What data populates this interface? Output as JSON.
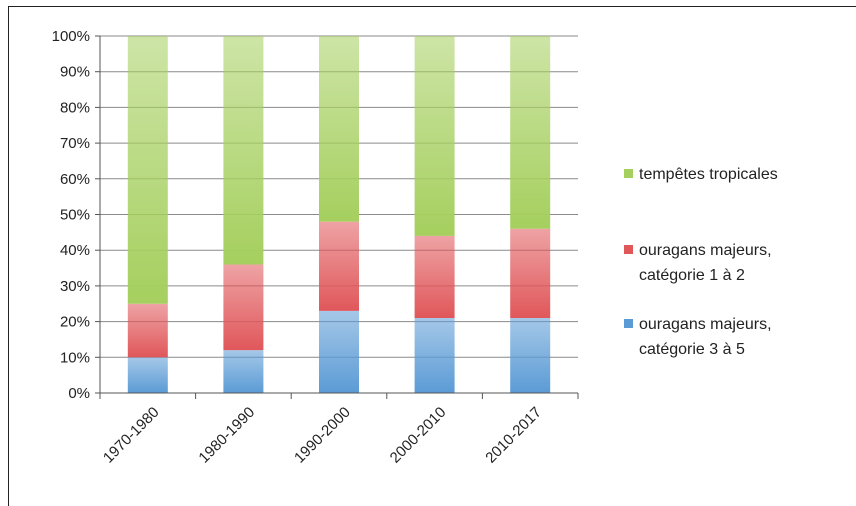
{
  "chart_data": {
    "type": "bar",
    "stacked": true,
    "percent": true,
    "categories": [
      "1970-1980",
      "1980-1990",
      "1990-2000",
      "2000-2010",
      "2010-2017"
    ],
    "series": [
      {
        "name": "ouragans majeurs, catégorie 3 à 5",
        "legend_lines": [
          "ouragans majeurs,",
          "catégorie 3 à 5"
        ],
        "color": "#5b9bd5",
        "values": [
          10,
          12,
          23,
          21,
          21
        ]
      },
      {
        "name": "ouragans majeurs, catégorie 1 à 2",
        "legend_lines": [
          "ouragans majeurs,",
          "catégorie 1 à 2"
        ],
        "color": "#e0575a",
        "values": [
          15,
          24,
          25,
          23,
          25
        ]
      },
      {
        "name": "tempêtes tropicales",
        "legend_lines": [
          "tempêtes tropicales"
        ],
        "color": "#a5cf5e",
        "values": [
          75,
          64,
          52,
          56,
          54
        ]
      }
    ],
    "ylim": [
      0,
      100
    ],
    "yticks": [
      "0%",
      "10%",
      "20%",
      "30%",
      "40%",
      "50%",
      "60%",
      "70%",
      "80%",
      "90%",
      "100%"
    ],
    "grid": true,
    "legend_position": "right"
  }
}
